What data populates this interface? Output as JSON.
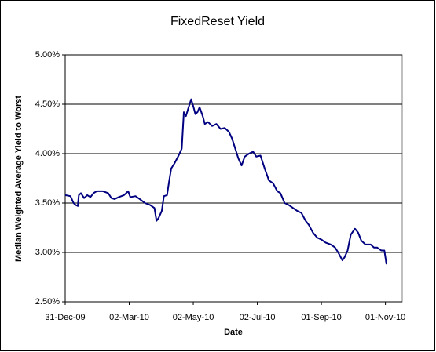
{
  "chart_data": {
    "type": "line",
    "title": "FixedReset Yield",
    "x_label": "Date",
    "y_label": "Median Weighted Average Yield to Worst",
    "x": [
      "2009-12-31",
      "2010-01-05",
      "2010-01-08",
      "2010-01-10",
      "2010-01-12",
      "2010-01-13",
      "2010-01-15",
      "2010-01-18",
      "2010-01-21",
      "2010-01-24",
      "2010-01-27",
      "2010-01-30",
      "2010-02-05",
      "2010-02-10",
      "2010-02-13",
      "2010-02-16",
      "2010-02-20",
      "2010-02-25",
      "2010-03-01",
      "2010-03-03",
      "2010-03-08",
      "2010-03-12",
      "2010-03-17",
      "2010-03-22",
      "2010-03-26",
      "2010-03-28",
      "2010-03-30",
      "2010-04-02",
      "2010-04-04",
      "2010-04-07",
      "2010-04-09",
      "2010-04-11",
      "2010-04-14",
      "2010-04-18",
      "2010-04-21",
      "2010-04-23",
      "2010-04-25",
      "2010-04-27",
      "2010-04-30",
      "2010-05-02",
      "2010-05-04",
      "2010-05-06",
      "2010-05-08",
      "2010-05-11",
      "2010-05-13",
      "2010-05-16",
      "2010-05-20",
      "2010-05-24",
      "2010-05-28",
      "2010-06-01",
      "2010-06-05",
      "2010-06-08",
      "2010-06-11",
      "2010-06-14",
      "2010-06-17",
      "2010-06-20",
      "2010-06-24",
      "2010-06-28",
      "2010-07-01",
      "2010-07-05",
      "2010-07-09",
      "2010-07-13",
      "2010-07-17",
      "2010-07-21",
      "2010-07-24",
      "2010-07-28",
      "2010-08-01",
      "2010-08-05",
      "2010-08-09",
      "2010-08-13",
      "2010-08-17",
      "2010-08-20",
      "2010-08-24",
      "2010-08-28",
      "2010-09-01",
      "2010-09-05",
      "2010-09-10",
      "2010-09-14",
      "2010-09-17",
      "2010-09-21",
      "2010-09-23",
      "2010-09-26",
      "2010-09-29",
      "2010-10-03",
      "2010-10-06",
      "2010-10-09",
      "2010-10-13",
      "2010-10-18",
      "2010-10-21",
      "2010-10-24",
      "2010-10-28",
      "2010-10-31",
      "2010-11-02"
    ],
    "series": [
      {
        "name": "FixedReset Yield",
        "color": "#000080",
        "values": [
          3.58,
          3.57,
          3.5,
          3.48,
          3.47,
          3.58,
          3.6,
          3.55,
          3.58,
          3.56,
          3.6,
          3.62,
          3.62,
          3.6,
          3.55,
          3.54,
          3.56,
          3.58,
          3.62,
          3.56,
          3.57,
          3.54,
          3.5,
          3.48,
          3.45,
          3.32,
          3.35,
          3.42,
          3.57,
          3.58,
          3.72,
          3.85,
          3.9,
          3.98,
          4.05,
          4.42,
          4.38,
          4.45,
          4.55,
          4.48,
          4.4,
          4.42,
          4.47,
          4.38,
          4.3,
          4.32,
          4.28,
          4.3,
          4.25,
          4.26,
          4.22,
          4.15,
          4.05,
          3.95,
          3.88,
          3.97,
          4.0,
          4.02,
          3.97,
          3.98,
          3.85,
          3.73,
          3.7,
          3.62,
          3.6,
          3.5,
          3.48,
          3.45,
          3.42,
          3.4,
          3.32,
          3.28,
          3.2,
          3.15,
          3.13,
          3.1,
          3.08,
          3.05,
          3.0,
          2.92,
          2.95,
          3.02,
          3.18,
          3.24,
          3.2,
          3.12,
          3.08,
          3.08,
          3.05,
          3.05,
          3.02,
          3.02,
          2.88
        ]
      }
    ],
    "xlim": [
      "2009-12-31",
      "2010-11-17"
    ],
    "xticks": [
      {
        "value": "2009-12-31",
        "label": "31-Dec-09"
      },
      {
        "value": "2010-03-02",
        "label": "02-Mar-10"
      },
      {
        "value": "2010-05-02",
        "label": "02-May-10"
      },
      {
        "value": "2010-07-02",
        "label": "02-Jul-10"
      },
      {
        "value": "2010-09-01",
        "label": "01-Sep-10"
      },
      {
        "value": "2010-11-01",
        "label": "01-Nov-10"
      }
    ],
    "ylim": [
      2.5,
      5.0
    ],
    "yticks": [
      {
        "value": 2.5,
        "label": "2.50%"
      },
      {
        "value": 3.0,
        "label": "3.00%"
      },
      {
        "value": 3.5,
        "label": "3.50%"
      },
      {
        "value": 4.0,
        "label": "4.00%"
      },
      {
        "value": 4.5,
        "label": "4.50%"
      },
      {
        "value": 5.0,
        "label": "5.00%"
      }
    ],
    "grid": true
  }
}
